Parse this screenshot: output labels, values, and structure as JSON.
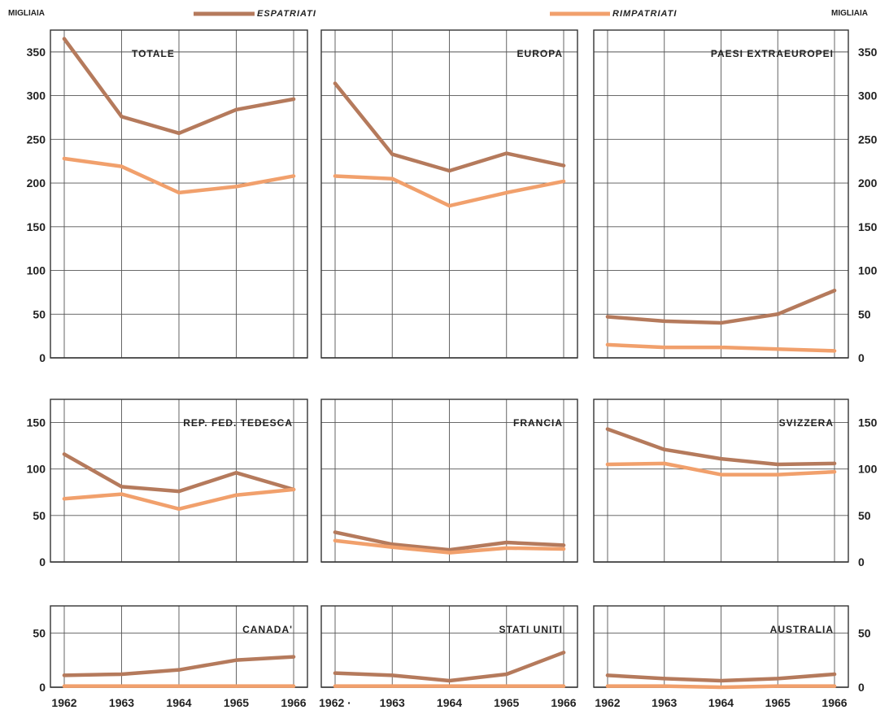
{
  "units": {
    "left": "MIGLIAIA",
    "right": "MIGLIAIA"
  },
  "legend": [
    {
      "label": "ESPATRIATI",
      "color": "#b57a5c"
    },
    {
      "label": "RIMPATRIATI",
      "color": "#f1a06c"
    }
  ],
  "chart_data": [
    {
      "type": "line",
      "title": "TOTALE",
      "x": [
        1962,
        1963,
        1964,
        1965,
        1966
      ],
      "ylim": [
        0,
        350
      ],
      "yticks": [
        0,
        50,
        100,
        150,
        200,
        250,
        300,
        350
      ],
      "series": [
        {
          "name": "ESPATRIATI",
          "values": [
            365,
            276,
            257,
            284,
            296
          ]
        },
        {
          "name": "RIMPATRIATI",
          "values": [
            228,
            219,
            189,
            196,
            208
          ]
        }
      ]
    },
    {
      "type": "line",
      "title": "EUROPA",
      "x": [
        1962,
        1963,
        1964,
        1965,
        1966
      ],
      "ylim": [
        0,
        350
      ],
      "series": [
        {
          "name": "ESPATRIATI",
          "values": [
            314,
            233,
            214,
            234,
            220
          ]
        },
        {
          "name": "RIMPATRIATI",
          "values": [
            208,
            205,
            174,
            189,
            202
          ]
        }
      ]
    },
    {
      "type": "line",
      "title": "PAESI   EXTRAEUROPEI",
      "x": [
        1962,
        1963,
        1964,
        1965,
        1966
      ],
      "ylim": [
        0,
        350
      ],
      "yticks": [
        0,
        50,
        100,
        150,
        200,
        250,
        300,
        350
      ],
      "series": [
        {
          "name": "ESPATRIATI",
          "values": [
            47,
            42,
            40,
            50,
            77
          ]
        },
        {
          "name": "RIMPATRIATI",
          "values": [
            15,
            12,
            12,
            10,
            8
          ]
        }
      ]
    },
    {
      "type": "line",
      "title": "REP.  FED.  TEDESCA",
      "x": [
        1962,
        1963,
        1964,
        1965,
        1966
      ],
      "ylim": [
        0,
        150
      ],
      "yticks": [
        0,
        50,
        100,
        150
      ],
      "series": [
        {
          "name": "ESPATRIATI",
          "values": [
            116,
            81,
            76,
            96,
            78
          ]
        },
        {
          "name": "RIMPATRIATI",
          "values": [
            68,
            73,
            57,
            72,
            78
          ]
        }
      ]
    },
    {
      "type": "line",
      "title": "FRANCIA",
      "x": [
        1962,
        1963,
        1964,
        1965,
        1966
      ],
      "ylim": [
        0,
        150
      ],
      "series": [
        {
          "name": "ESPATRIATI",
          "values": [
            32,
            19,
            13,
            21,
            18
          ]
        },
        {
          "name": "RIMPATRIATI",
          "values": [
            23,
            16,
            10,
            15,
            14
          ]
        }
      ]
    },
    {
      "type": "line",
      "title": "SVIZZERA",
      "x": [
        1962,
        1963,
        1964,
        1965,
        1966
      ],
      "ylim": [
        0,
        150
      ],
      "yticks": [
        0,
        50,
        100,
        150
      ],
      "series": [
        {
          "name": "ESPATRIATI",
          "values": [
            143,
            121,
            111,
            105,
            106
          ]
        },
        {
          "name": "RIMPATRIATI",
          "values": [
            105,
            106,
            94,
            94,
            97
          ]
        }
      ]
    },
    {
      "type": "line",
      "title": "CANADA'",
      "x": [
        1962,
        1963,
        1964,
        1965,
        1966
      ],
      "ylim": [
        0,
        50
      ],
      "yticks": [
        0,
        50
      ],
      "xticks": [
        "1962",
        "1963",
        "1964",
        "1965",
        "1966"
      ],
      "series": [
        {
          "name": "ESPATRIATI",
          "values": [
            11,
            12,
            16,
            25,
            28
          ]
        },
        {
          "name": "RIMPATRIATI",
          "values": [
            1,
            1,
            1,
            1,
            1
          ]
        }
      ]
    },
    {
      "type": "line",
      "title": "STATI   UNITI",
      "x": [
        1962,
        1963,
        1964,
        1965,
        1966
      ],
      "ylim": [
        0,
        50
      ],
      "xticks": [
        "1962 ·",
        "1963",
        "1964",
        "1965",
        "1966"
      ],
      "series": [
        {
          "name": "ESPATRIATI",
          "values": [
            13,
            11,
            6,
            12,
            32
          ]
        },
        {
          "name": "RIMPATRIATI",
          "values": [
            1,
            1,
            1,
            1,
            1
          ]
        }
      ]
    },
    {
      "type": "line",
      "title": "AUSTRALIA",
      "x": [
        1962,
        1963,
        1964,
        1965,
        1966
      ],
      "ylim": [
        0,
        50
      ],
      "yticks": [
        0,
        50
      ],
      "xticks": [
        "1962",
        "1963",
        "1964",
        "1965",
        "1966"
      ],
      "series": [
        {
          "name": "ESPATRIATI",
          "values": [
            11,
            8,
            6,
            8,
            12
          ]
        },
        {
          "name": "RIMPATRIATI",
          "values": [
            1,
            1,
            0,
            1,
            1
          ]
        }
      ]
    }
  ]
}
